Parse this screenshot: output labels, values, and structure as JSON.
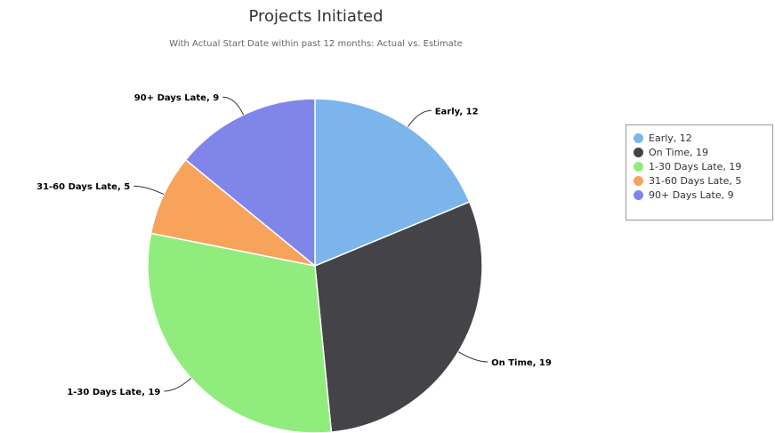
{
  "chart_data": {
    "type": "pie",
    "title": "Projects Initiated",
    "subtitle": "With Actual Start Date within past 12 months: Actual vs. Estimate",
    "legend_position": "right",
    "slices": [
      {
        "label": "Early",
        "value": 12,
        "display": "Early, 12",
        "color": "#7cb5ec"
      },
      {
        "label": "On Time",
        "value": 19,
        "display": "On Time, 19",
        "color": "#434348"
      },
      {
        "label": "1-30 Days Late",
        "value": 19,
        "display": "1-30 Days Late, 19",
        "color": "#90ed7d"
      },
      {
        "label": "31-60 Days Late",
        "value": 5,
        "display": "31-60 Days Late, 5",
        "color": "#f7a35c"
      },
      {
        "label": "90+ Days Late",
        "value": 9,
        "display": "90+ Days Late, 9",
        "color": "#8085e9"
      }
    ]
  }
}
